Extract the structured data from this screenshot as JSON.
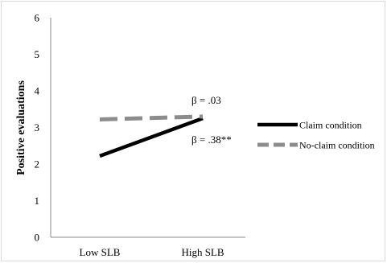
{
  "chart_data": {
    "type": "line",
    "title": "",
    "xlabel": "",
    "ylabel": "Positive evaluations",
    "categories": [
      "Low SLB",
      "High SLB"
    ],
    "ylim": [
      0,
      6
    ],
    "yticks": [
      "0",
      "1",
      "2",
      "3",
      "4",
      "5",
      "6"
    ],
    "grid": false,
    "legend_position": "right",
    "series": [
      {
        "name": "Claim condition",
        "values": [
          2.22,
          3.25
        ],
        "color": "#000000",
        "style": "solid"
      },
      {
        "name": "No-claim condition",
        "values": [
          3.22,
          3.3
        ],
        "color": "#8c8c8c",
        "style": "dashed"
      }
    ],
    "annotations": [
      "β = .03",
      "β = .38**"
    ]
  }
}
